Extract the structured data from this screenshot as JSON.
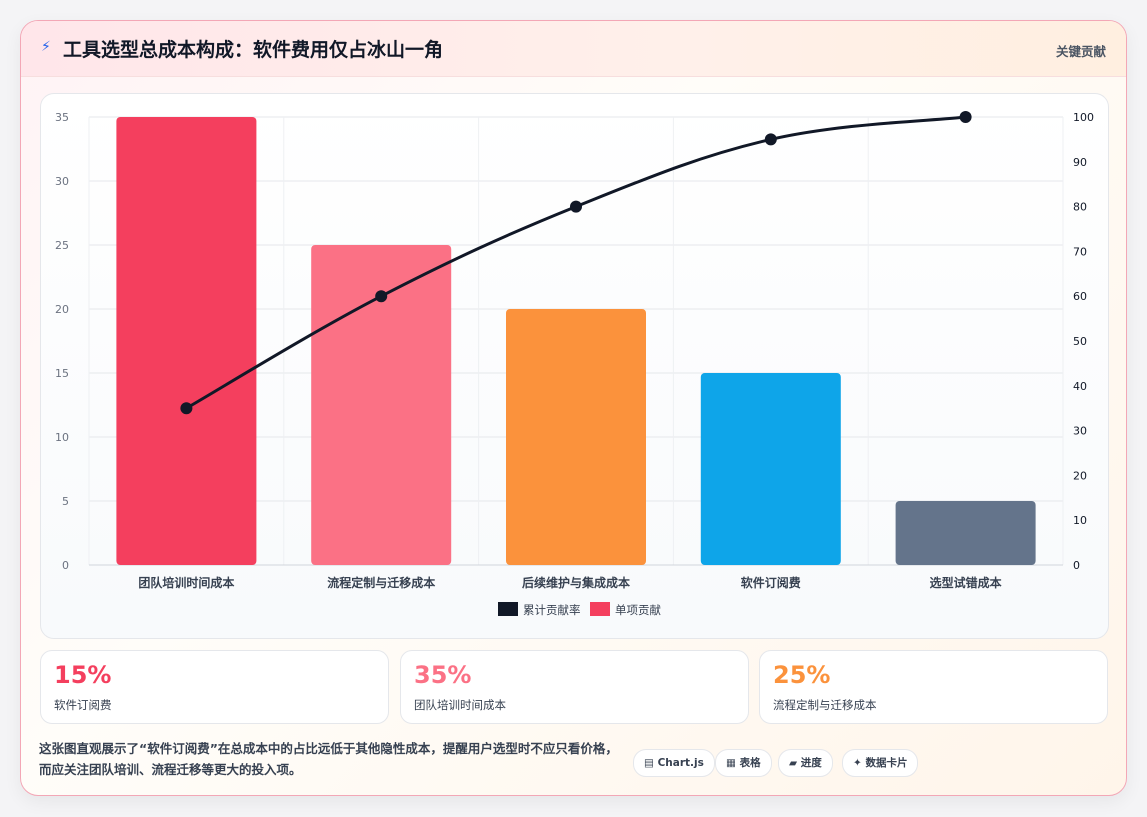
{
  "header": {
    "icon": "lightning-icon",
    "title": "工具选型总成本构成：软件费用仅占冰山一角",
    "tag": "关键贡献"
  },
  "chart_data": {
    "type": "bar",
    "categories": [
      "团队培训时间成本",
      "流程定制与迁移成本",
      "后续维护与集成成本",
      "软件订阅费",
      "选型试错成本"
    ],
    "series": [
      {
        "name": "单项贡献",
        "type": "bar",
        "axis": "left",
        "values": [
          35,
          25,
          20,
          15,
          5
        ],
        "colors": [
          "#f43f5e",
          "#fb7185",
          "#fb923c",
          "#0ea5e9",
          "#64748b"
        ]
      },
      {
        "name": "累计贡献率",
        "type": "line",
        "axis": "right",
        "values": [
          35,
          60,
          80,
          95,
          100
        ],
        "color": "#111827"
      }
    ],
    "y_left": {
      "min": 0,
      "max": 35,
      "ticks": [
        0,
        5,
        10,
        15,
        20,
        25,
        30,
        35
      ]
    },
    "y_right": {
      "min": 0,
      "max": 100,
      "ticks": [
        0,
        10,
        20,
        30,
        40,
        50,
        60,
        70,
        80,
        90,
        100
      ]
    },
    "legend": {
      "position": "bottom",
      "items": [
        {
          "label": "累计贡献率",
          "color": "#111827"
        },
        {
          "label": "单项贡献",
          "color": "#f43f5e"
        }
      ]
    },
    "grid": true
  },
  "stats": [
    {
      "value": "15%",
      "label": "软件订阅费",
      "color": "#f43f5e"
    },
    {
      "value": "35%",
      "label": "团队培训时间成本",
      "color": "#fb7185"
    },
    {
      "value": "25%",
      "label": "流程定制与迁移成本",
      "color": "#fb923c"
    }
  ],
  "description": "这张图直观展示了“软件订阅费”在总成本中的占比远低于其他隐性成本，提醒用户选型时不应只看价格，而应关注团队培训、流程迁移等更大的投入项。",
  "tags": [
    {
      "icon": "▤",
      "label": "Chart.js"
    },
    {
      "icon": "▦",
      "label": "表格"
    },
    {
      "icon": "▰",
      "label": "进度"
    },
    {
      "icon": "✦",
      "label": "数据卡片"
    }
  ]
}
